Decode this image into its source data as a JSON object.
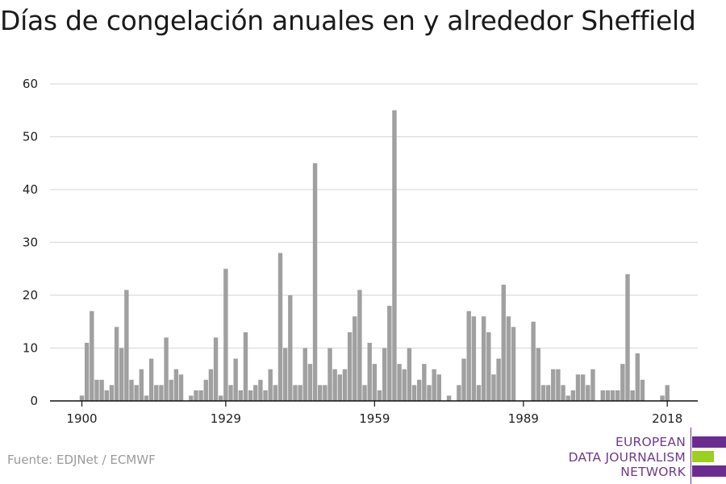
{
  "source": "Fuente: EDJNet / ECMWF",
  "logo": {
    "lines": [
      "EUROPEAN",
      "DATA JOURNALISM",
      "NETWORK"
    ],
    "colors": {
      "purple": "#6b2c91",
      "green": "#9bd020"
    }
  },
  "chart_data": {
    "type": "bar",
    "title": "Días de congelación anuales en y alrededor Sheffield",
    "xlabel": "",
    "ylabel": "",
    "x_range": [
      1900,
      2018
    ],
    "ylim": [
      0,
      60
    ],
    "yticks": [
      0,
      10,
      20,
      30,
      40,
      50,
      60
    ],
    "xticks": [
      1900,
      1929,
      1959,
      1989,
      2018
    ],
    "grid": true,
    "bar_color": "#a0a0a0",
    "values": [
      1,
      11,
      17,
      4,
      4,
      2,
      3,
      14,
      10,
      21,
      4,
      3,
      6,
      1,
      8,
      3,
      3,
      12,
      4,
      6,
      5,
      0,
      1,
      2,
      2,
      4,
      6,
      12,
      1,
      25,
      3,
      8,
      2,
      13,
      2,
      3,
      4,
      2,
      6,
      3,
      28,
      10,
      20,
      3,
      3,
      10,
      7,
      45,
      3,
      3,
      10,
      6,
      5,
      6,
      13,
      16,
      21,
      3,
      11,
      7,
      2,
      10,
      18,
      55,
      7,
      6,
      10,
      3,
      4,
      7,
      3,
      6,
      5,
      0,
      1,
      0,
      3,
      8,
      17,
      16,
      3,
      16,
      13,
      5,
      8,
      22,
      16,
      14,
      0,
      0,
      0,
      15,
      10,
      3,
      3,
      6,
      6,
      3,
      1,
      2,
      5,
      5,
      3,
      6,
      0,
      2,
      2,
      2,
      2,
      7,
      24,
      2,
      9,
      4,
      0,
      0,
      0,
      1,
      3
    ]
  }
}
